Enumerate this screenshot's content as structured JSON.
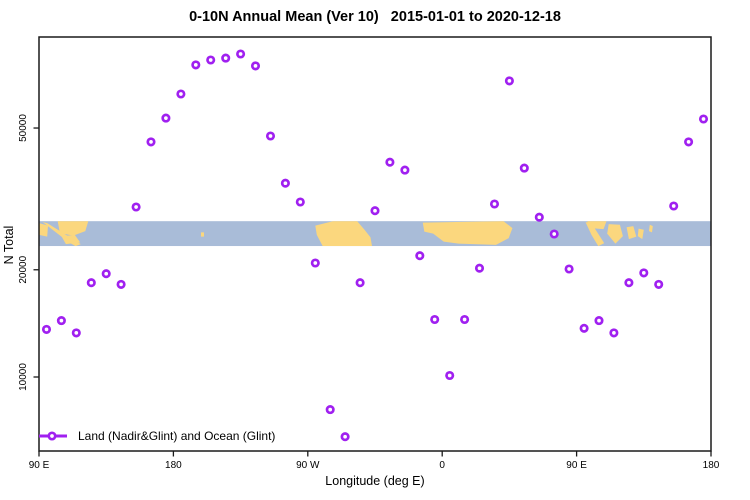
{
  "title": "0-10N Annual Mean (Ver 10)   2015-01-01 to 2020-12-18",
  "axes": {
    "x_label": "Longitude (deg E)",
    "y_label": "N Total",
    "x_ticks": [
      {
        "axis_deg": 90,
        "label": "90 E"
      },
      {
        "axis_deg": 180,
        "label": "180"
      },
      {
        "axis_deg": 270,
        "label": "90 W"
      },
      {
        "axis_deg": 360,
        "label": "0"
      },
      {
        "axis_deg": 450,
        "label": "90 E"
      },
      {
        "axis_deg": 540,
        "label": "180"
      }
    ],
    "y_ticks": [
      {
        "value": 10000,
        "label": "10000"
      },
      {
        "value": 20000,
        "label": "20000"
      },
      {
        "value": 50000,
        "label": "50000"
      }
    ]
  },
  "legend": {
    "label": "Land (Nadir&Glint) and Ocean (Glint)"
  },
  "colors": {
    "marker": "#a020f0",
    "ocean": "#a9bcd8",
    "land": "#fbd77e",
    "axis": "#1a1a1a",
    "text": "#000000"
  },
  "map_band": {
    "top_value": 27400,
    "bottom_value": 23300,
    "land_polygons": [
      [
        [
          90,
          0.08
        ],
        [
          96,
          0.18
        ],
        [
          95.5,
          0.62
        ],
        [
          90,
          0.55
        ]
      ],
      [
        [
          92.5,
          0.04
        ],
        [
          95.5,
          0.08
        ],
        [
          118,
          0.92
        ],
        [
          114.5,
          1
        ],
        [
          110,
          0.85
        ]
      ],
      [
        [
          102.5,
          0
        ],
        [
          123,
          0
        ],
        [
          121,
          0.4
        ],
        [
          113,
          0.58
        ],
        [
          104,
          0.48
        ]
      ],
      [
        [
          105,
          0.6
        ],
        [
          114,
          0.55
        ],
        [
          117.5,
          0.85
        ],
        [
          108,
          0.92
        ]
      ],
      [
        [
          198.5,
          0.45
        ],
        [
          200.5,
          0.45
        ],
        [
          200.5,
          0.62
        ],
        [
          198.5,
          0.62
        ]
      ],
      [
        [
          275,
          0.18
        ],
        [
          287,
          0
        ],
        [
          303,
          0
        ],
        [
          308,
          0.35
        ],
        [
          312,
          0.65
        ],
        [
          313,
          1
        ],
        [
          280,
          1
        ],
        [
          276,
          0.55
        ]
      ],
      [
        [
          347,
          0.06
        ],
        [
          401,
          0
        ],
        [
          407,
          0.28
        ],
        [
          404.5,
          0.68
        ],
        [
          396,
          0.95
        ],
        [
          371,
          0.9
        ],
        [
          361,
          0.82
        ],
        [
          354,
          0.5
        ],
        [
          348,
          0.42
        ]
      ],
      [
        [
          456,
          0.05
        ],
        [
          459.5,
          0.05
        ],
        [
          468.5,
          0.88
        ],
        [
          464.5,
          1
        ],
        [
          460,
          0.55
        ]
      ],
      [
        [
          457,
          0
        ],
        [
          470,
          0
        ],
        [
          468,
          0.32
        ],
        [
          459.5,
          0.28
        ]
      ],
      [
        [
          471.5,
          0.12
        ],
        [
          479,
          0.15
        ],
        [
          481,
          0.6
        ],
        [
          476,
          0.9
        ],
        [
          470.5,
          0.5
        ]
      ],
      [
        [
          483.5,
          0.25
        ],
        [
          488,
          0.2
        ],
        [
          490,
          0.62
        ],
        [
          485,
          0.72
        ]
      ],
      [
        [
          491.5,
          0.3
        ],
        [
          495,
          0.35
        ],
        [
          494,
          0.72
        ],
        [
          491,
          0.6
        ]
      ],
      [
        [
          499,
          0.15
        ],
        [
          501,
          0.2
        ],
        [
          500.5,
          0.45
        ],
        [
          498.5,
          0.4
        ]
      ]
    ]
  },
  "chart_data": {
    "type": "scatter",
    "title": "0-10N Annual Mean (Ver 10)   2015-01-01 to 2020-12-18",
    "xlabel": "Longitude (deg E)",
    "ylabel": "N Total",
    "y_scale": "log",
    "ylim": [
      6200,
      90000
    ],
    "x_axis_note": "axis runs 90E eastward through 180, 90W, 0, 90E to 180 (450 deg total); axis_deg=90..540",
    "grid": false,
    "legend_position": "bottom-left",
    "points": [
      {
        "axis_deg": 95,
        "lon": "95E",
        "n_total": 13600
      },
      {
        "axis_deg": 105,
        "lon": "105E",
        "n_total": 14400
      },
      {
        "axis_deg": 115,
        "lon": "115E",
        "n_total": 13300
      },
      {
        "axis_deg": 125,
        "lon": "125E",
        "n_total": 18400
      },
      {
        "axis_deg": 135,
        "lon": "135E",
        "n_total": 19500
      },
      {
        "axis_deg": 145,
        "lon": "145E",
        "n_total": 18200
      },
      {
        "axis_deg": 155,
        "lon": "155E",
        "n_total": 30000
      },
      {
        "axis_deg": 165,
        "lon": "165E",
        "n_total": 45700
      },
      {
        "axis_deg": 175,
        "lon": "175E",
        "n_total": 53300
      },
      {
        "axis_deg": 185,
        "lon": "175W",
        "n_total": 62300
      },
      {
        "axis_deg": 195,
        "lon": "165W",
        "n_total": 75200
      },
      {
        "axis_deg": 205,
        "lon": "155W",
        "n_total": 77600
      },
      {
        "axis_deg": 215,
        "lon": "145W",
        "n_total": 78600
      },
      {
        "axis_deg": 225,
        "lon": "135W",
        "n_total": 80700
      },
      {
        "axis_deg": 235,
        "lon": "125W",
        "n_total": 74700
      },
      {
        "axis_deg": 245,
        "lon": "115W",
        "n_total": 47500
      },
      {
        "axis_deg": 255,
        "lon": "105W",
        "n_total": 35000
      },
      {
        "axis_deg": 265,
        "lon": "95W",
        "n_total": 31000
      },
      {
        "axis_deg": 275,
        "lon": "85W",
        "n_total": 20900
      },
      {
        "axis_deg": 285,
        "lon": "75W",
        "n_total": 8100
      },
      {
        "axis_deg": 295,
        "lon": "65W",
        "n_total": 6800
      },
      {
        "axis_deg": 305,
        "lon": "55W",
        "n_total": 18400
      },
      {
        "axis_deg": 315,
        "lon": "45W",
        "n_total": 29300
      },
      {
        "axis_deg": 325,
        "lon": "35W",
        "n_total": 40100
      },
      {
        "axis_deg": 335,
        "lon": "25W",
        "n_total": 38100
      },
      {
        "axis_deg": 345,
        "lon": "15W",
        "n_total": 21900
      },
      {
        "axis_deg": 355,
        "lon": "5W",
        "n_total": 14500
      },
      {
        "axis_deg": 365,
        "lon": "5E",
        "n_total": 10100
      },
      {
        "axis_deg": 375,
        "lon": "15E",
        "n_total": 14500
      },
      {
        "axis_deg": 385,
        "lon": "25E",
        "n_total": 20200
      },
      {
        "axis_deg": 395,
        "lon": "35E",
        "n_total": 30600
      },
      {
        "axis_deg": 405,
        "lon": "45E",
        "n_total": 67800
      },
      {
        "axis_deg": 415,
        "lon": "55E",
        "n_total": 38600
      },
      {
        "axis_deg": 425,
        "lon": "65E",
        "n_total": 28100
      },
      {
        "axis_deg": 435,
        "lon": "75E",
        "n_total": 25200
      },
      {
        "axis_deg": 445,
        "lon": "85E",
        "n_total": 20100
      },
      {
        "axis_deg": 455,
        "lon": "95E",
        "n_total": 13700
      },
      {
        "axis_deg": 465,
        "lon": "105E",
        "n_total": 14400
      },
      {
        "axis_deg": 475,
        "lon": "115E",
        "n_total": 13300
      },
      {
        "axis_deg": 485,
        "lon": "125E",
        "n_total": 18400
      },
      {
        "axis_deg": 495,
        "lon": "135E",
        "n_total": 19600
      },
      {
        "axis_deg": 505,
        "lon": "145E",
        "n_total": 18200
      },
      {
        "axis_deg": 515,
        "lon": "155E",
        "n_total": 30200
      },
      {
        "axis_deg": 525,
        "lon": "165E",
        "n_total": 45700
      },
      {
        "axis_deg": 535,
        "lon": "175E",
        "n_total": 53000
      }
    ]
  }
}
